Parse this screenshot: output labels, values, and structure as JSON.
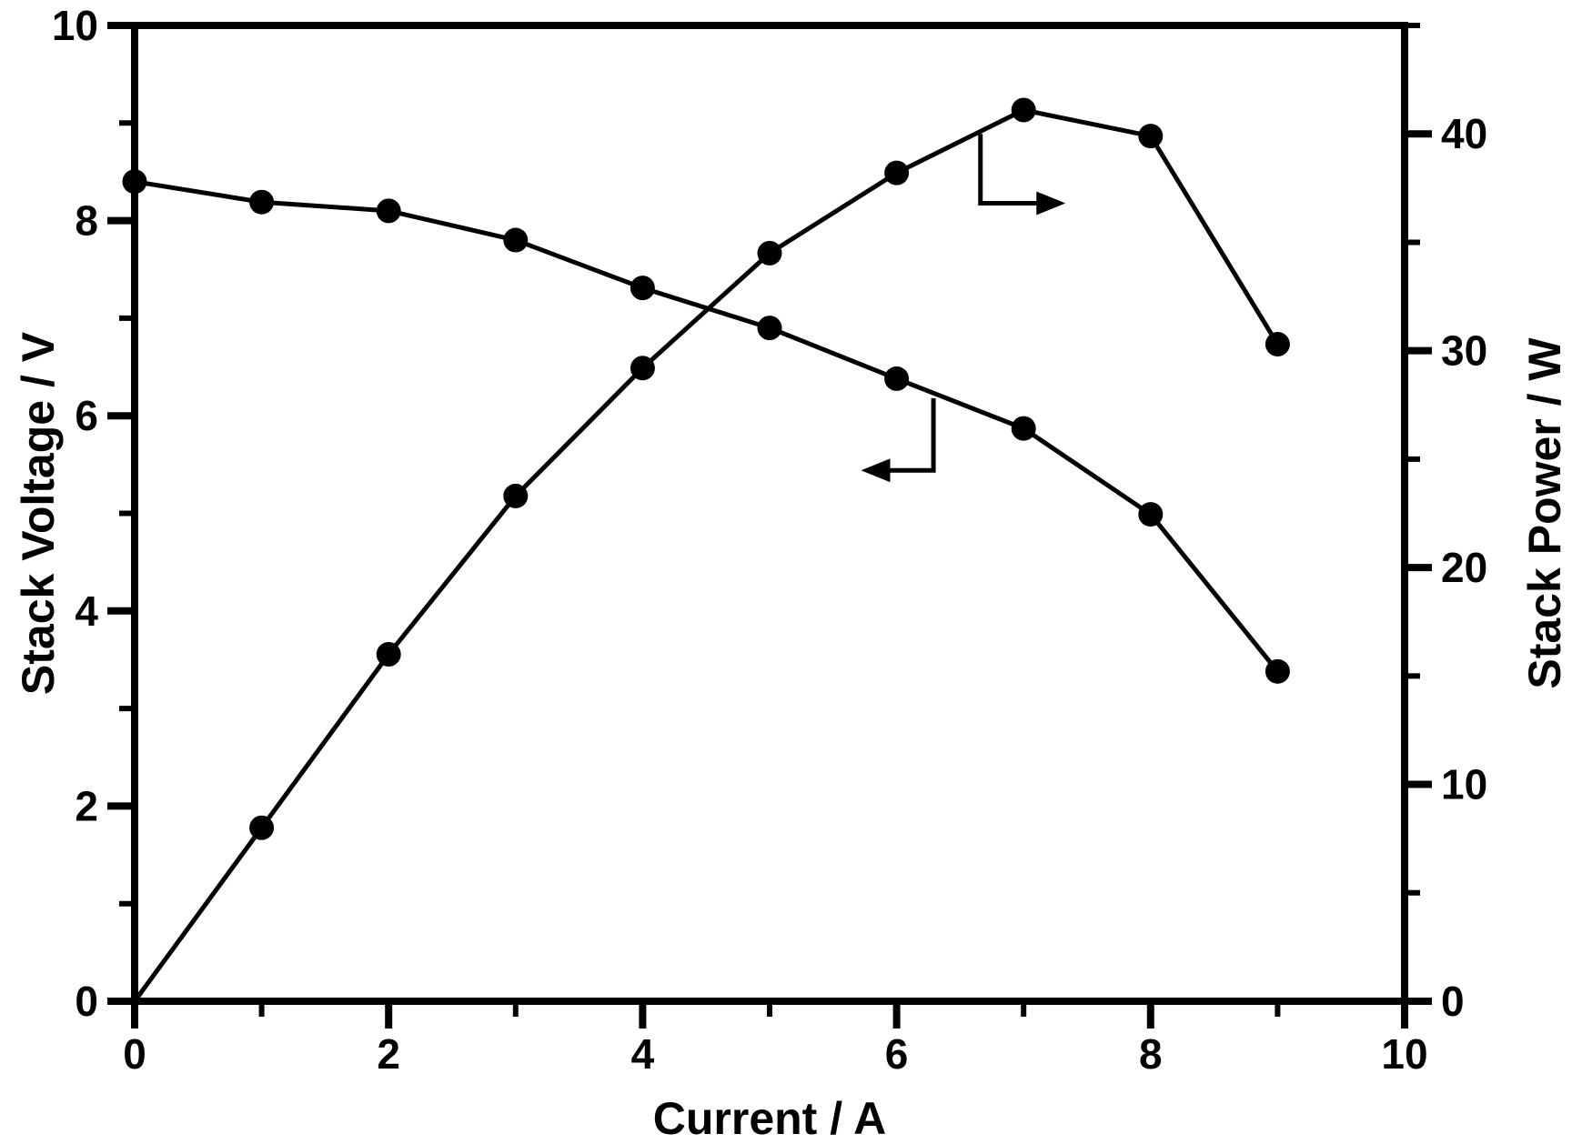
{
  "figure": {
    "background_color": "#ffffff",
    "ink_color": "#000000",
    "title": ""
  },
  "chart_data": {
    "type": "line",
    "title": "",
    "x": [
      0,
      1,
      2,
      3,
      4,
      5,
      6,
      7,
      8,
      9
    ],
    "series": [
      {
        "name": "Stack Voltage",
        "axis": "left",
        "marker": "filled-circle",
        "line_style": "solid",
        "color": "#000000",
        "values": [
          8.4,
          8.19,
          8.1,
          7.8,
          7.31,
          6.9,
          6.38,
          5.87,
          4.99,
          3.38
        ]
      },
      {
        "name": "Stack Power",
        "axis": "right",
        "marker": "filled-circle",
        "line_style": "solid",
        "color": "#000000",
        "values": [
          0,
          8.0,
          16.0,
          23.3,
          29.2,
          34.5,
          38.2,
          41.1,
          39.9,
          30.3
        ]
      }
    ],
    "xlabel": "Current / A",
    "ylabel_left": "Stack Voltage / V",
    "ylabel_right": "Stack Power / W",
    "xlim": [
      0,
      10
    ],
    "ylim_left": [
      0,
      10
    ],
    "ylim_right": [
      0,
      45
    ],
    "x_major_ticks": [
      0,
      2,
      4,
      6,
      8,
      10
    ],
    "x_minor_ticks": [
      1,
      3,
      5,
      7,
      9
    ],
    "left_major_ticks": [
      0,
      2,
      4,
      6,
      8,
      10
    ],
    "left_minor_ticks": [
      1,
      3,
      5,
      7,
      9
    ],
    "right_major_ticks": [
      0,
      10,
      20,
      30,
      40
    ],
    "right_minor_ticks": [
      5,
      15,
      25,
      35,
      45
    ],
    "grid": false,
    "legend_position": "none",
    "annotations": [
      {
        "name": "voltage-axis-arrow",
        "series": "Stack Voltage",
        "axis": "left",
        "direction": "left",
        "x_tap": 6.29,
        "y_tap": 6.18,
        "y_elbow": 5.44,
        "x_end": 5.72
      },
      {
        "name": "power-axis-arrow",
        "series": "Stack Power",
        "axis": "right",
        "direction": "right",
        "x_tap": 6.66,
        "y_tap": 40.0,
        "y_elbow": 36.8,
        "x_end": 7.33
      }
    ]
  }
}
